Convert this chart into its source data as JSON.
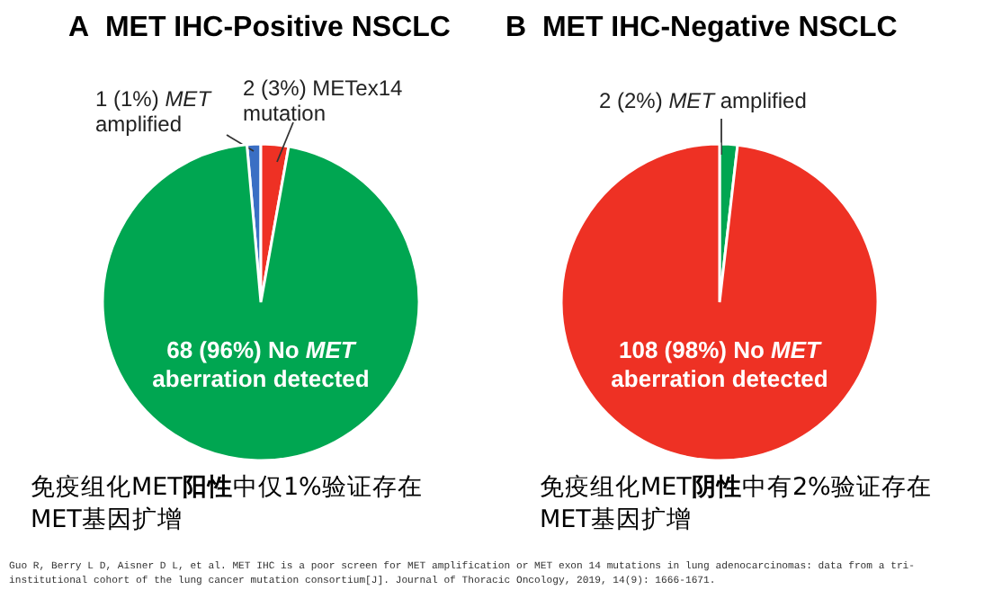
{
  "chart_data": [
    {
      "type": "pie",
      "title": "A  MET IHC-Positive NSCLC",
      "categories": [
        "1 (1%) *MET* amplified",
        "2 (3%) METex14 mutation",
        "68 (96%) No *MET* aberration detected"
      ],
      "values": [
        1,
        2,
        68
      ],
      "colors": [
        "#3a6fc4",
        "#ee3124",
        "#00a651"
      ],
      "annotations": [
        "免疫组化MET**阳性**中仅1%验证存在MET基因扩增",
        "Guo R, Berry L D, Aisner D L, et al. MET IHC is a poor screen for MET amplification or MET exon 14 mutations in lung adenocarcinomas: data from a tri-institutional cohort of the lung cancer mutation consortium[J]. Journal of Thoracic Oncology, 2019, 14(9): 1666-1671."
      ]
    },
    {
      "type": "pie",
      "title": "B  MET IHC-Negative NSCLC",
      "categories": [
        "2 (2%) *MET* amplified",
        "108 (98%) No *MET* aberration detected"
      ],
      "values": [
        2,
        108
      ],
      "colors": [
        "#00a651",
        "#ee3124"
      ],
      "annotations": [
        "免疫组化MET**阴性**中有2%验证存在MET基因扩增"
      ]
    }
  ]
}
